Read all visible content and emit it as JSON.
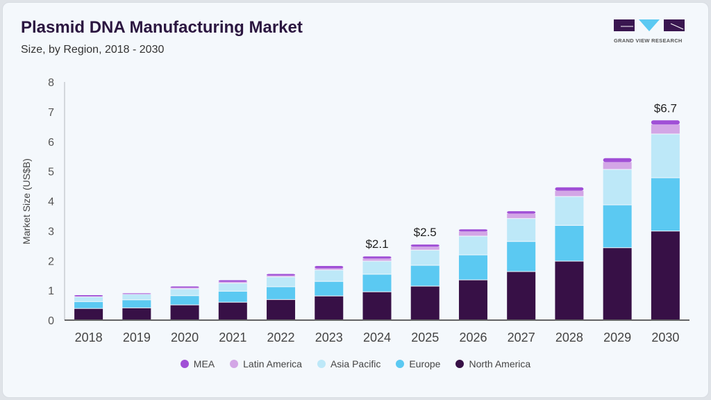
{
  "header": {
    "title": "Plasmid DNA Manufacturing Market",
    "subtitle": "Size, by Region, 2018 - 2030",
    "logo_text": "GRAND VIEW RESEARCH"
  },
  "chart_data": {
    "type": "bar",
    "stacked": true,
    "title": "Plasmid DNA Manufacturing Market",
    "subtitle": "Size, by Region, 2018 - 2030",
    "xlabel": "",
    "ylabel": "Market Size (US$B)",
    "ylim": [
      0,
      8
    ],
    "yticks": [
      "0",
      "1",
      "2",
      "3",
      "4",
      "5",
      "6",
      "7",
      "8"
    ],
    "grid": false,
    "legend_position": "bottom",
    "categories": [
      "2018",
      "2019",
      "2020",
      "2021",
      "2022",
      "2023",
      "2024",
      "2025",
      "2026",
      "2027",
      "2028",
      "2029",
      "2030"
    ],
    "series": [
      {
        "name": "North America",
        "color": "#371046",
        "values": [
          0.38,
          0.4,
          0.5,
          0.59,
          0.68,
          0.8,
          0.94,
          1.13,
          1.34,
          1.62,
          1.97,
          2.42,
          2.98
        ]
      },
      {
        "name": "Europe",
        "color": "#5bc9f2",
        "values": [
          0.23,
          0.27,
          0.31,
          0.37,
          0.43,
          0.49,
          0.59,
          0.7,
          0.84,
          1.01,
          1.2,
          1.44,
          1.79
        ]
      },
      {
        "name": "Asia Pacific",
        "color": "#bde8f8",
        "values": [
          0.16,
          0.19,
          0.23,
          0.27,
          0.33,
          0.38,
          0.44,
          0.51,
          0.63,
          0.77,
          0.97,
          1.19,
          1.47
        ]
      },
      {
        "name": "Latin America",
        "color": "#d3a6e6",
        "values": [
          0.03,
          0.02,
          0.05,
          0.06,
          0.06,
          0.07,
          0.1,
          0.13,
          0.17,
          0.18,
          0.21,
          0.26,
          0.33
        ]
      },
      {
        "name": "MEA",
        "color": "#a04fd6",
        "values": [
          0.04,
          0.02,
          0.04,
          0.05,
          0.05,
          0.08,
          0.07,
          0.07,
          0.07,
          0.08,
          0.11,
          0.13,
          0.14
        ]
      }
    ],
    "annotations": [
      {
        "category": "2024",
        "label": "$2.1"
      },
      {
        "category": "2025",
        "label": "$2.5"
      },
      {
        "category": "2030",
        "label": "$6.7"
      }
    ],
    "legend_order": [
      "MEA",
      "Latin America",
      "Asia Pacific",
      "Europe",
      "North America"
    ]
  }
}
